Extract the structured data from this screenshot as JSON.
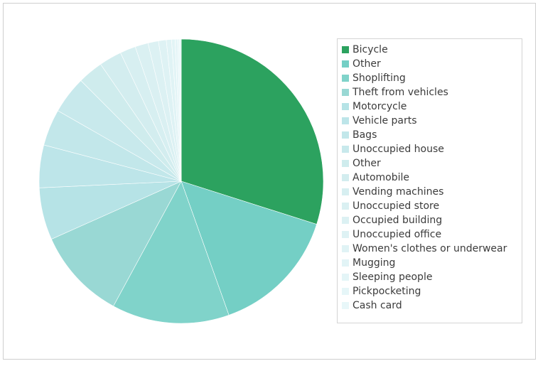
{
  "chart_data": {
    "type": "pie",
    "title": "",
    "legend_position": "right",
    "start_angle_deg": 0,
    "direction": "clockwise",
    "slices": [
      {
        "label": "Bicycle",
        "value": 30.2,
        "color": "#2ca25f"
      },
      {
        "label": "Other",
        "value": 14.8,
        "color": "#74cfc5"
      },
      {
        "label": "Shoplifting",
        "value": 13.5,
        "color": "#80d3ca"
      },
      {
        "label": "Theft from vehicles",
        "value": 10.5,
        "color": "#99d8d4"
      },
      {
        "label": "Motorcycle",
        "value": 6.0,
        "color": "#b6e3e6"
      },
      {
        "label": "Vehicle parts",
        "value": 4.9,
        "color": "#bde5e9"
      },
      {
        "label": "Bags",
        "value": 4.2,
        "color": "#c2e7ea"
      },
      {
        "label": "Unoccupied house",
        "value": 4.3,
        "color": "#c8e9ec"
      },
      {
        "label": "Other",
        "value": 2.9,
        "color": "#cfeced"
      },
      {
        "label": "Automobile",
        "value": 2.6,
        "color": "#d3edef"
      },
      {
        "label": "Vending machines",
        "value": 1.8,
        "color": "#d7eff1"
      },
      {
        "label": "Unoccupied store",
        "value": 1.5,
        "color": "#daf0f2"
      },
      {
        "label": "Occupied building",
        "value": 1.2,
        "color": "#dcf1f3"
      },
      {
        "label": "Unoccupied office",
        "value": 0.9,
        "color": "#def2f4"
      },
      {
        "label": "Women's clothes or underwear",
        "value": 0.6,
        "color": "#e0f3f5"
      },
      {
        "label": "Mugging",
        "value": 0.4,
        "color": "#e2f4f6"
      },
      {
        "label": "Sleeping people",
        "value": 0.3,
        "color": "#e4f5f7"
      },
      {
        "label": "Pickpocketing",
        "value": 0.2,
        "color": "#e6f6f8"
      },
      {
        "label": "Cash card",
        "value": 0.2,
        "color": "#e8f7f9"
      }
    ]
  }
}
